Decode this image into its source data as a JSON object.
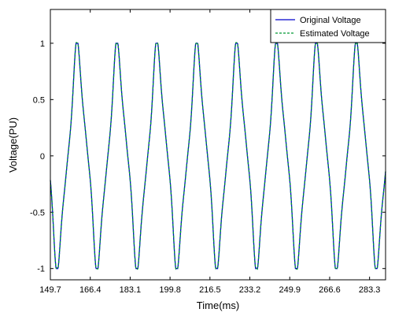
{
  "chart_data": {
    "type": "line",
    "title": "",
    "xlabel": "Time(ms)",
    "ylabel": "Voltage(PU)",
    "xlim": [
      149.7,
      290.0
    ],
    "ylim": [
      -1.1,
      1.3
    ],
    "x_ticks": [
      149.7,
      166.4,
      183.1,
      199.8,
      216.5,
      233.2,
      249.9,
      266.6,
      283.3
    ],
    "x_tick_labels": [
      "149.7",
      "166.4",
      "183.1",
      "199.8",
      "216.5",
      "233.2",
      "249.9",
      "266.6",
      "283.3"
    ],
    "y_ticks": [
      -1,
      -0.5,
      0,
      0.5,
      1
    ],
    "y_tick_labels": [
      "-1",
      "-0.5",
      "0",
      "0.5",
      "1"
    ],
    "grid": false,
    "legend_position": "top-right",
    "signal": {
      "period_ms": 16.7,
      "amplitude_pu": 1.0,
      "first_peak_ms": 161.1
    },
    "series": [
      {
        "name": "Original Voltage",
        "color": "#0000cc",
        "style": "solid"
      },
      {
        "name": "Estimated Voltage",
        "color": "#009933",
        "style": "dashed"
      }
    ]
  }
}
